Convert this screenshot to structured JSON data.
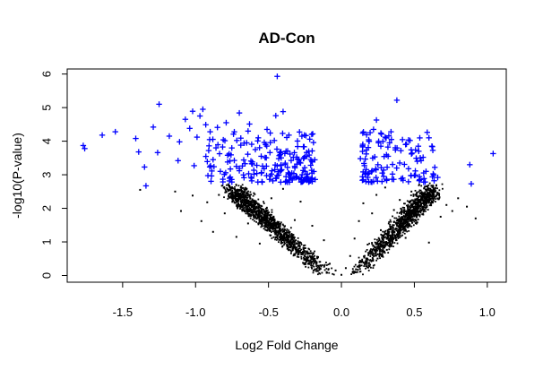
{
  "chart_data": {
    "type": "scatter",
    "title": "AD-Con",
    "xlabel": "Log2 Fold Change",
    "ylabel": "-log10(P-value)",
    "xlim": [
      -1.88,
      1.13
    ],
    "ylim": [
      -0.2,
      6.15
    ],
    "x_ticks": [
      -1.5,
      -1.0,
      -0.5,
      0.0,
      0.5,
      1.0
    ],
    "x_tick_labels": [
      "-1.5",
      "-1.0",
      "-0.5",
      "0.0",
      "0.5",
      "1.0"
    ],
    "y_ticks": [
      0,
      1,
      2,
      3,
      4,
      5,
      6
    ],
    "y_tick_labels": [
      "0",
      "1",
      "2",
      "3",
      "4",
      "5",
      "6"
    ],
    "grid": false,
    "legend": "none",
    "series": [
      {
        "color": "#0000ff",
        "marker": "plus",
        "points": [
          [
            -1.77,
            3.87
          ],
          [
            -1.76,
            3.78
          ],
          [
            -1.64,
            4.18
          ],
          [
            -1.55,
            4.28
          ],
          [
            -1.41,
            4.08
          ],
          [
            -1.39,
            3.68
          ],
          [
            -1.35,
            3.23
          ],
          [
            -1.34,
            2.67
          ],
          [
            -1.29,
            4.42
          ],
          [
            -1.26,
            3.66
          ],
          [
            -1.25,
            5.1
          ],
          [
            -1.18,
            4.15
          ],
          [
            -1.12,
            3.42
          ],
          [
            -1.11,
            3.98
          ],
          [
            -1.07,
            4.65
          ],
          [
            -1.04,
            4.38
          ],
          [
            -1.02,
            4.89
          ],
          [
            -1.01,
            3.27
          ],
          [
            -0.99,
            4.12
          ],
          [
            -0.97,
            4.75
          ],
          [
            -0.95,
            4.95
          ],
          [
            -0.93,
            4.49
          ],
          [
            -0.91,
            3.72
          ],
          [
            -0.9,
            4.28
          ],
          [
            -0.88,
            3.45
          ],
          [
            -0.85,
            4.41
          ],
          [
            -0.83,
            3.1
          ],
          [
            -0.81,
            4.04
          ],
          [
            -0.79,
            4.55
          ],
          [
            -0.77,
            3.62
          ],
          [
            -0.74,
            4.21
          ],
          [
            -0.72,
            3.25
          ],
          [
            -0.7,
            4.84
          ],
          [
            -0.69,
            3.88
          ],
          [
            -0.67,
            3.44
          ],
          [
            -0.65,
            3.95
          ],
          [
            -0.63,
            4.51
          ],
          [
            -0.61,
            3.32
          ],
          [
            -0.59,
            3.75
          ],
          [
            -0.57,
            4.1
          ],
          [
            -0.55,
            3.55
          ],
          [
            -0.53,
            3.18
          ],
          [
            -0.51,
            4.35
          ],
          [
            -0.49,
            3.66
          ],
          [
            -0.48,
            3.02
          ],
          [
            -0.46,
            4.02
          ],
          [
            -0.45,
            4.76
          ],
          [
            -0.44,
            5.93
          ],
          [
            -0.43,
            3.48
          ],
          [
            -0.41,
            3.15
          ],
          [
            -0.4,
            4.88
          ],
          [
            -0.38,
            3.7
          ],
          [
            -0.37,
            3.22
          ],
          [
            -0.36,
            4.18
          ],
          [
            -0.34,
            3.05
          ],
          [
            -0.33,
            3.52
          ],
          [
            -0.31,
            2.95
          ],
          [
            -0.3,
            3.84
          ],
          [
            -0.29,
            2.88
          ],
          [
            -0.28,
            3.35
          ],
          [
            -0.26,
            2.82
          ],
          [
            -0.25,
            3.1
          ],
          [
            -0.23,
            2.9
          ],
          [
            -0.21,
            3.45
          ],
          [
            -0.2,
            2.8
          ],
          [
            -0.18,
            2.86
          ],
          [
            -0.55,
            3.05
          ],
          [
            -0.62,
            2.92
          ],
          [
            -0.7,
            3.12
          ],
          [
            -0.78,
            3.38
          ],
          [
            -0.86,
            3.8
          ],
          [
            -0.45,
            2.9
          ],
          [
            -0.36,
            2.84
          ],
          [
            -0.52,
            3.9
          ],
          [
            -0.64,
            4.3
          ],
          [
            -0.58,
            3.28
          ],
          [
            -0.42,
            3.6
          ],
          [
            -0.32,
            3.25
          ],
          [
            0.13,
            3.48
          ],
          [
            0.15,
            2.85
          ],
          [
            0.17,
            3.62
          ],
          [
            0.19,
            4.0
          ],
          [
            0.21,
            3.12
          ],
          [
            0.22,
            4.35
          ],
          [
            0.24,
            4.63
          ],
          [
            0.25,
            3.3
          ],
          [
            0.27,
            3.85
          ],
          [
            0.29,
            2.95
          ],
          [
            0.3,
            4.12
          ],
          [
            0.32,
            3.55
          ],
          [
            0.34,
            4.28
          ],
          [
            0.35,
            3.02
          ],
          [
            0.37,
            3.74
          ],
          [
            0.38,
            5.22
          ],
          [
            0.4,
            3.35
          ],
          [
            0.42,
            2.9
          ],
          [
            0.44,
            3.9
          ],
          [
            0.46,
            3.18
          ],
          [
            0.48,
            3.62
          ],
          [
            0.5,
            2.98
          ],
          [
            0.52,
            3.4
          ],
          [
            0.54,
            2.86
          ],
          [
            0.56,
            3.52
          ],
          [
            0.58,
            3.1
          ],
          [
            0.6,
            4.1
          ],
          [
            0.62,
            3.85
          ],
          [
            0.64,
            3.22
          ],
          [
            0.66,
            2.92
          ],
          [
            0.28,
            3.05
          ],
          [
            0.33,
            3.95
          ],
          [
            0.41,
            2.88
          ],
          [
            0.47,
            4.02
          ],
          [
            0.53,
            3.7
          ],
          [
            0.18,
            3.02
          ],
          [
            0.88,
            3.3
          ],
          [
            0.89,
            2.73
          ],
          [
            1.04,
            3.63
          ]
        ]
      },
      {
        "color": "#000000",
        "marker": "dot",
        "description": "dense V-shaped cloud of non-significant genes below ~2.7",
        "points": [
          [
            -1.38,
            2.55
          ],
          [
            -1.14,
            2.5
          ],
          [
            -1.1,
            1.92
          ],
          [
            -1.02,
            2.38
          ],
          [
            -0.96,
            1.62
          ],
          [
            -0.92,
            2.18
          ],
          [
            -0.88,
            1.3
          ],
          [
            -0.84,
            2.4
          ],
          [
            -0.8,
            1.85
          ],
          [
            -0.76,
            2.62
          ],
          [
            -0.72,
            1.15
          ],
          [
            -0.68,
            2.05
          ],
          [
            -0.64,
            1.55
          ],
          [
            -0.6,
            2.45
          ],
          [
            -0.56,
            0.95
          ],
          [
            -0.52,
            1.78
          ],
          [
            -0.48,
            2.3
          ],
          [
            -0.44,
            1.2
          ],
          [
            -0.4,
            2.58
          ],
          [
            -0.36,
            0.85
          ],
          [
            -0.32,
            1.65
          ],
          [
            -0.28,
            2.2
          ],
          [
            -0.24,
            0.7
          ],
          [
            -0.2,
            1.48
          ],
          [
            -0.16,
            0.55
          ],
          [
            -0.12,
            1.05
          ],
          [
            -0.08,
            0.35
          ],
          [
            -0.04,
            0.15
          ],
          [
            0.0,
            0.02
          ],
          [
            0.03,
            0.22
          ],
          [
            0.06,
            0.58
          ],
          [
            0.09,
            1.1
          ],
          [
            0.12,
            1.62
          ],
          [
            0.15,
            2.15
          ],
          [
            0.18,
            0.92
          ],
          [
            0.21,
            1.85
          ],
          [
            0.24,
            2.4
          ],
          [
            0.27,
            1.35
          ],
          [
            0.3,
            2.62
          ],
          [
            0.33,
            0.88
          ],
          [
            0.36,
            1.95
          ],
          [
            0.4,
            2.25
          ],
          [
            0.44,
            1.12
          ],
          [
            0.48,
            2.5
          ],
          [
            0.52,
            1.58
          ],
          [
            0.56,
            2.05
          ],
          [
            0.6,
            0.98
          ],
          [
            0.64,
            2.35
          ],
          [
            0.68,
            1.75
          ],
          [
            0.72,
            2.1
          ],
          [
            0.76,
            1.92
          ],
          [
            0.8,
            2.3
          ],
          [
            0.86,
            2.05
          ],
          [
            0.92,
            1.7
          ]
        ]
      }
    ]
  }
}
